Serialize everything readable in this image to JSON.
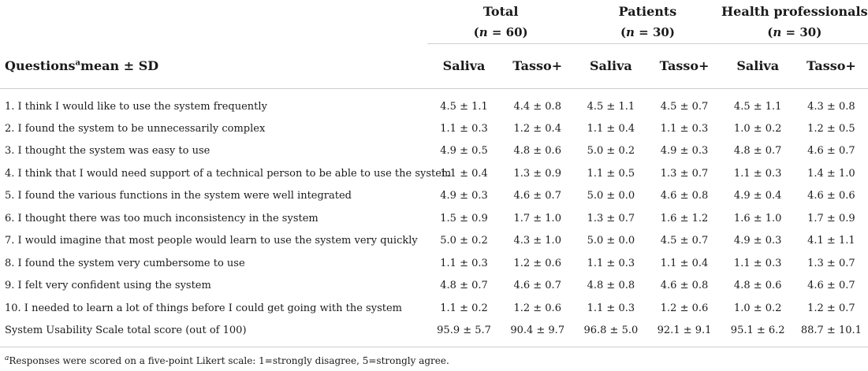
{
  "groups": {
    "total": {
      "title": "Total",
      "n": "60"
    },
    "patients": {
      "title": "Patients",
      "n": "30"
    },
    "health": {
      "title": "Health professionals",
      "n": "30"
    }
  },
  "header": {
    "questions_label": "Questions",
    "questions_sup": "a",
    "questions_suffix": "mean ± SD",
    "saliva": "Saliva",
    "tasso": "Tasso+"
  },
  "rows": [
    {
      "q": "1. I think I would like to use the system frequently",
      "v": [
        "4.5 ± 1.1",
        "4.4 ± 0.8",
        "4.5 ± 1.1",
        "4.5 ± 0.7",
        "4.5 ± 1.1",
        "4.3 ± 0.8"
      ]
    },
    {
      "q": "2. I found the system to be unnecessarily complex",
      "v": [
        "1.1 ± 0.3",
        "1.2 ± 0.4",
        "1.1 ± 0.4",
        "1.1 ± 0.3",
        "1.0 ± 0.2",
        "1.2 ± 0.5"
      ]
    },
    {
      "q": "3. I thought the system was easy to use",
      "v": [
        "4.9 ± 0.5",
        "4.8 ± 0.6",
        "5.0 ± 0.2",
        "4.9 ± 0.3",
        "4.8 ± 0.7",
        "4.6 ± 0.7"
      ]
    },
    {
      "q": "4. I think that I would need support of a technical person to be able to use the system",
      "v": [
        "1.1 ± 0.4",
        "1.3 ± 0.9",
        "1.1 ± 0.5",
        "1.3 ± 0.7",
        "1.1 ± 0.3",
        "1.4 ± 1.0"
      ]
    },
    {
      "q": "5. I found the various functions in the system were well integrated",
      "v": [
        "4.9 ± 0.3",
        "4.6 ± 0.7",
        "5.0 ± 0.0",
        "4.6 ± 0.8",
        "4.9 ± 0.4",
        "4.6 ± 0.6"
      ]
    },
    {
      "q": "6. I thought there was too much inconsistency in the system",
      "v": [
        "1.5 ± 0.9",
        "1.7 ± 1.0",
        "1.3 ± 0.7",
        "1.6 ± 1.2",
        "1.6 ± 1.0",
        "1.7 ± 0.9"
      ]
    },
    {
      "q": "7. I would imagine that most people would learn to use the system very quickly",
      "v": [
        "5.0 ± 0.2",
        "4.3 ± 1.0",
        "5.0 ± 0.0",
        "4.5 ± 0.7",
        "4.9 ± 0.3",
        "4.1 ± 1.1"
      ]
    },
    {
      "q": "8. I found the system very cumbersome to use",
      "v": [
        "1.1 ± 0.3",
        "1.2 ± 0.6",
        "1.1 ± 0.3",
        "1.1 ± 0.4",
        "1.1 ± 0.3",
        "1.3 ± 0.7"
      ]
    },
    {
      "q": "9. I felt very confident using the system",
      "v": [
        "4.8 ± 0.7",
        "4.6 ± 0.7",
        "4.8 ± 0.8",
        "4.6 ± 0.8",
        "4.8 ± 0.6",
        "4.6 ± 0.7"
      ]
    },
    {
      "q": "10. I needed to learn a lot of things before I could get going with the system",
      "v": [
        "1.1 ± 0.2",
        "1.2 ± 0.6",
        "1.1 ± 0.3",
        "1.2 ± 0.6",
        "1.0 ± 0.2",
        "1.2 ± 0.7"
      ]
    },
    {
      "q": "System Usability Scale total score (out of 100)",
      "v": [
        "95.9 ± 5.7",
        "90.4 ± 9.7",
        "96.8 ± 5.0",
        "92.1 ± 9.1",
        "95.1 ± 6.2",
        "88.7 ± 10.1"
      ]
    }
  ],
  "footnote": {
    "mark": "a",
    "text": "Responses were scored on a five-point Likert scale: 1=strongly disagree, 5=strongly agree."
  }
}
